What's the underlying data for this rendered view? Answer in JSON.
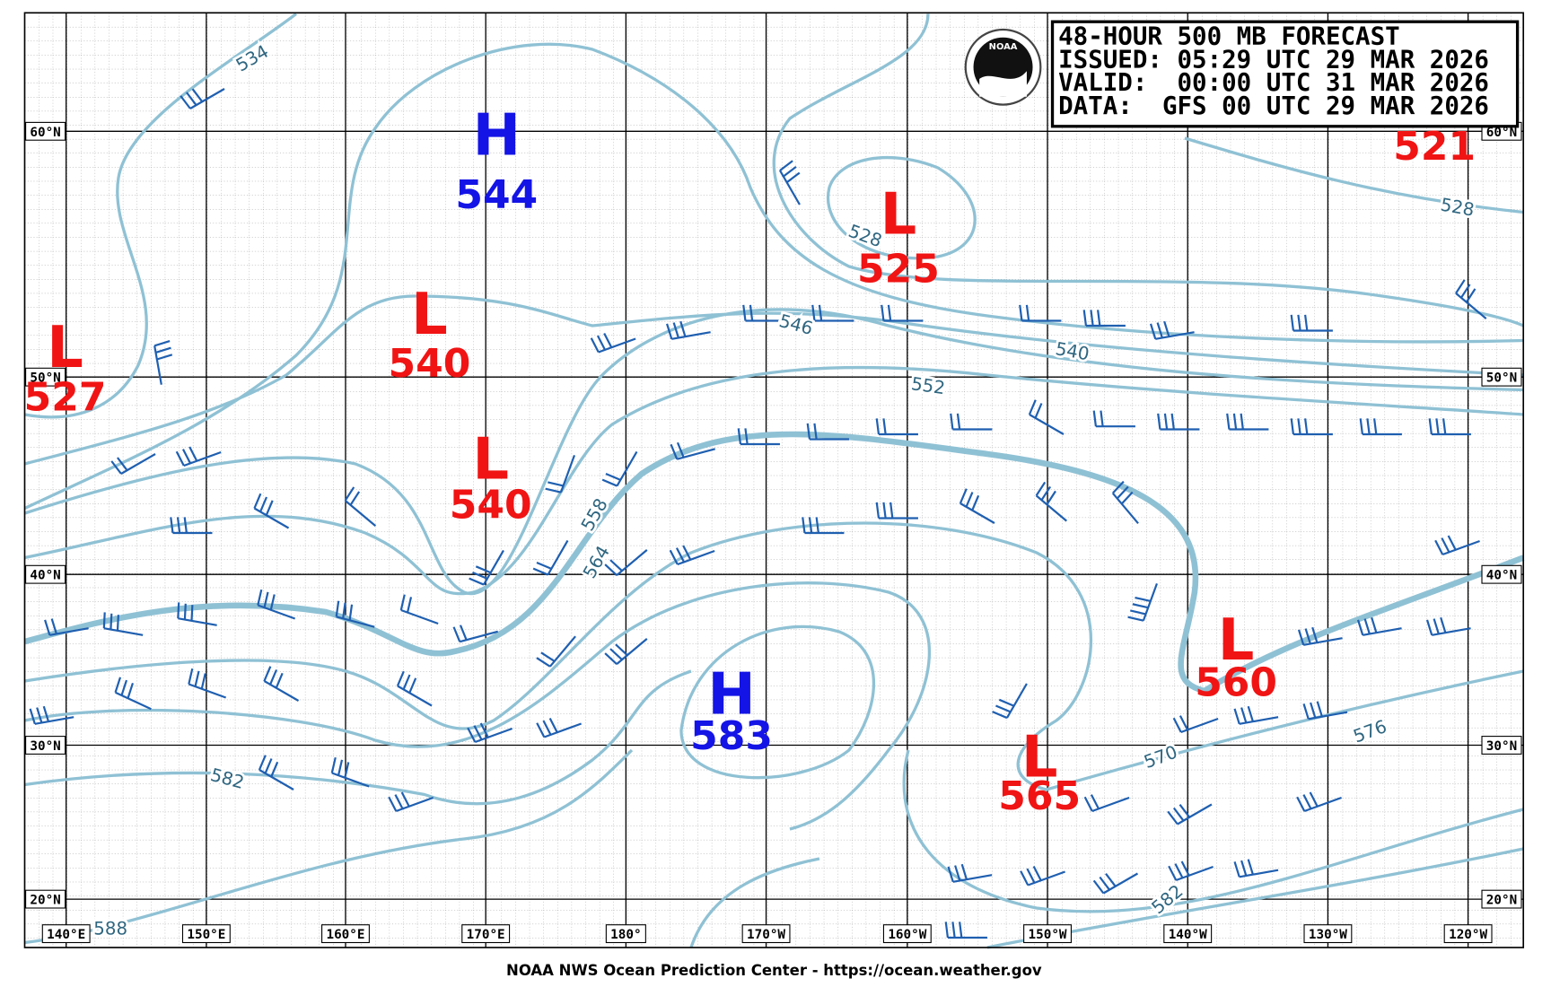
{
  "title_box": {
    "lines": [
      "48-HOUR 500 MB FORECAST",
      "ISSUED: 05:29 UTC 29 MAR 2026",
      "VALID:  00:00 UTC 31 MAR 2026",
      "DATA:  GFS 00 UTC 29 MAR 2026"
    ]
  },
  "logo": {
    "text": "NOAA"
  },
  "pressure_centers": [
    {
      "letter": "H",
      "value": 544,
      "color": "#1414e6"
    },
    {
      "letter": "L",
      "value": 540,
      "color": "#f01414"
    },
    {
      "letter": "L",
      "value": 527,
      "color": "#f01414"
    },
    {
      "letter": "L",
      "value": 540,
      "color": "#f01414"
    },
    {
      "letter": "L",
      "value": 525,
      "color": "#f01414"
    },
    {
      "letter": "H",
      "value": 583,
      "color": "#1414e6"
    },
    {
      "letter": "L",
      "value": 565,
      "color": "#f01414"
    },
    {
      "letter": "L",
      "value": 560,
      "color": "#f01414"
    },
    {
      "value": 521,
      "color": "#f01414"
    }
  ],
  "contour_labels": [
    534,
    546,
    540,
    552,
    558,
    564,
    528,
    528,
    582,
    588,
    570,
    576,
    582
  ],
  "longitude_labels": [
    "140°E",
    "150°E",
    "160°E",
    "170°E",
    "180°",
    "170°W",
    "160°W",
    "150°W",
    "140°W",
    "130°W",
    "120°W"
  ],
  "latitude_labels": [
    "60°N",
    "50°N",
    "40°N",
    "30°N",
    "20°N"
  ],
  "footer": "NOAA NWS Ocean Prediction Center - https://ocean.weather.gov"
}
